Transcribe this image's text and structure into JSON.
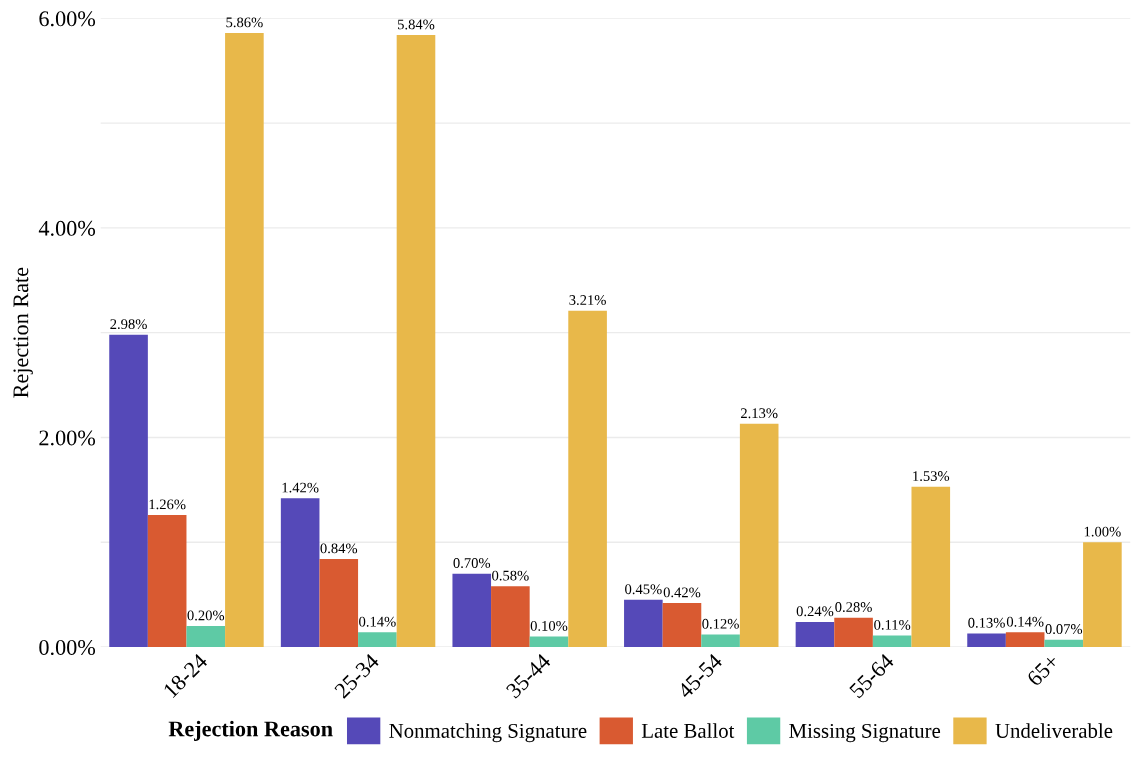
{
  "chart_data": {
    "type": "bar",
    "ylabel": "Rejection Rate",
    "legend_title": "Rejection Reason",
    "legend": "bottom",
    "grid": "y",
    "categories": [
      "18-24",
      "25-34",
      "35-44",
      "45-54",
      "55-64",
      "65+"
    ],
    "ylim": [
      0,
      6
    ],
    "yticks": [
      {
        "value": 0,
        "label": "0.00%"
      },
      {
        "value": 1,
        "label": null
      },
      {
        "value": 2,
        "label": "2.00%"
      },
      {
        "value": 3,
        "label": null
      },
      {
        "value": 4,
        "label": "4.00%"
      },
      {
        "value": 5,
        "label": null
      },
      {
        "value": 6,
        "label": "6.00%"
      }
    ],
    "series": [
      {
        "name": "Nonmatching Signature",
        "color": "#5549b8",
        "values": [
          2.98,
          1.42,
          0.7,
          0.45,
          0.24,
          0.13
        ],
        "value_labels": [
          "2.98%",
          "1.42%",
          "0.70%",
          "0.45%",
          "0.24%",
          "0.13%"
        ]
      },
      {
        "name": "Late Ballot",
        "color": "#d95a31",
        "values": [
          1.26,
          0.84,
          0.58,
          0.42,
          0.28,
          0.14
        ],
        "value_labels": [
          "1.26%",
          "0.84%",
          "0.58%",
          "0.42%",
          "0.28%",
          "0.14%"
        ]
      },
      {
        "name": "Missing Signature",
        "color": "#5ecaa5",
        "values": [
          0.2,
          0.14,
          0.1,
          0.12,
          0.11,
          0.07
        ],
        "value_labels": [
          "0.20%",
          "0.14%",
          "0.10%",
          "0.12%",
          "0.11%",
          "0.07%"
        ]
      },
      {
        "name": "Undeliverable",
        "color": "#e8b84a",
        "values": [
          5.86,
          5.84,
          3.21,
          2.13,
          1.53,
          1.0
        ],
        "value_labels": [
          "5.86%",
          "5.84%",
          "3.21%",
          "2.13%",
          "1.53%",
          "1.00%"
        ]
      }
    ]
  }
}
